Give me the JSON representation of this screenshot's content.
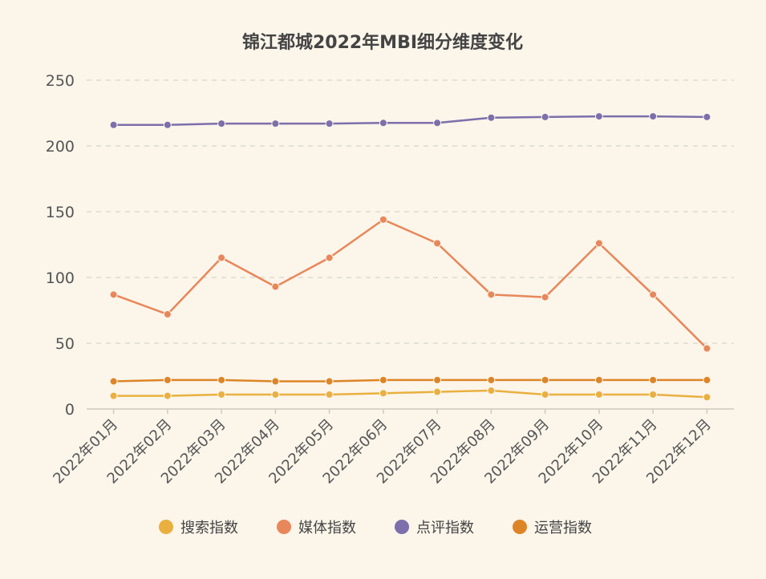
{
  "chart_data": {
    "type": "line",
    "title": "锦江都城2022年MBI细分维度变化",
    "xlabel": "",
    "ylabel": "",
    "ylim": [
      0,
      250
    ],
    "yticks": [
      0,
      50,
      100,
      150,
      200,
      250
    ],
    "grid": true,
    "legend_position": "bottom",
    "categories": [
      "2022年01月",
      "2022年02月",
      "2022年03月",
      "2022年04月",
      "2022年05月",
      "2022年06月",
      "2022年07月",
      "2022年08月",
      "2022年09月",
      "2022年10月",
      "2022年11月",
      "2022年12月"
    ],
    "series": [
      {
        "name": "搜索指数",
        "color": "#e9b040",
        "values": [
          10,
          10,
          11,
          11,
          11,
          12,
          13,
          14,
          11,
          11,
          11,
          9
        ]
      },
      {
        "name": "媒体指数",
        "color": "#e8875a",
        "values": [
          87,
          72,
          115,
          93,
          115,
          144,
          126,
          87,
          85,
          126,
          87,
          46
        ]
      },
      {
        "name": "点评指数",
        "color": "#7c6fab",
        "values": [
          216,
          216,
          217,
          217,
          217,
          217.5,
          217.5,
          221.5,
          222,
          222.5,
          222.5,
          222
        ]
      },
      {
        "name": "运营指数",
        "color": "#dd8526",
        "values": [
          21,
          22,
          22,
          21,
          21,
          22,
          22,
          22,
          22,
          22,
          22,
          22
        ]
      }
    ]
  }
}
